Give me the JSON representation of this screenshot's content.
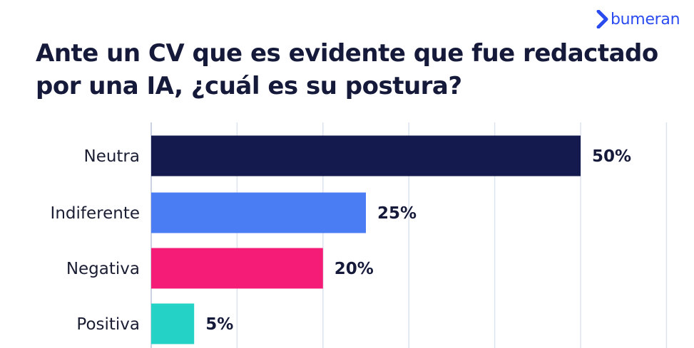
{
  "brand": {
    "name": "bumeran",
    "color": "#2a4bf0"
  },
  "title": "Ante un CV que es evidente que fue redactado por una IA, ¿cuál es su postura?",
  "chart_data": {
    "type": "bar",
    "orientation": "horizontal",
    "title": "Ante un CV que es evidente que fue redactado por una IA, ¿cuál es su postura?",
    "categories": [
      "Neutra",
      "Indiferente",
      "Negativa",
      "Positiva"
    ],
    "values": [
      50,
      25,
      20,
      5
    ],
    "value_labels": [
      "50%",
      "25%",
      "20%",
      "5%"
    ],
    "colors": [
      "#141a4d",
      "#4a7cf4",
      "#f51c78",
      "#25d3c6"
    ],
    "xlim": [
      0,
      60
    ],
    "grid": true,
    "legend": "none"
  }
}
